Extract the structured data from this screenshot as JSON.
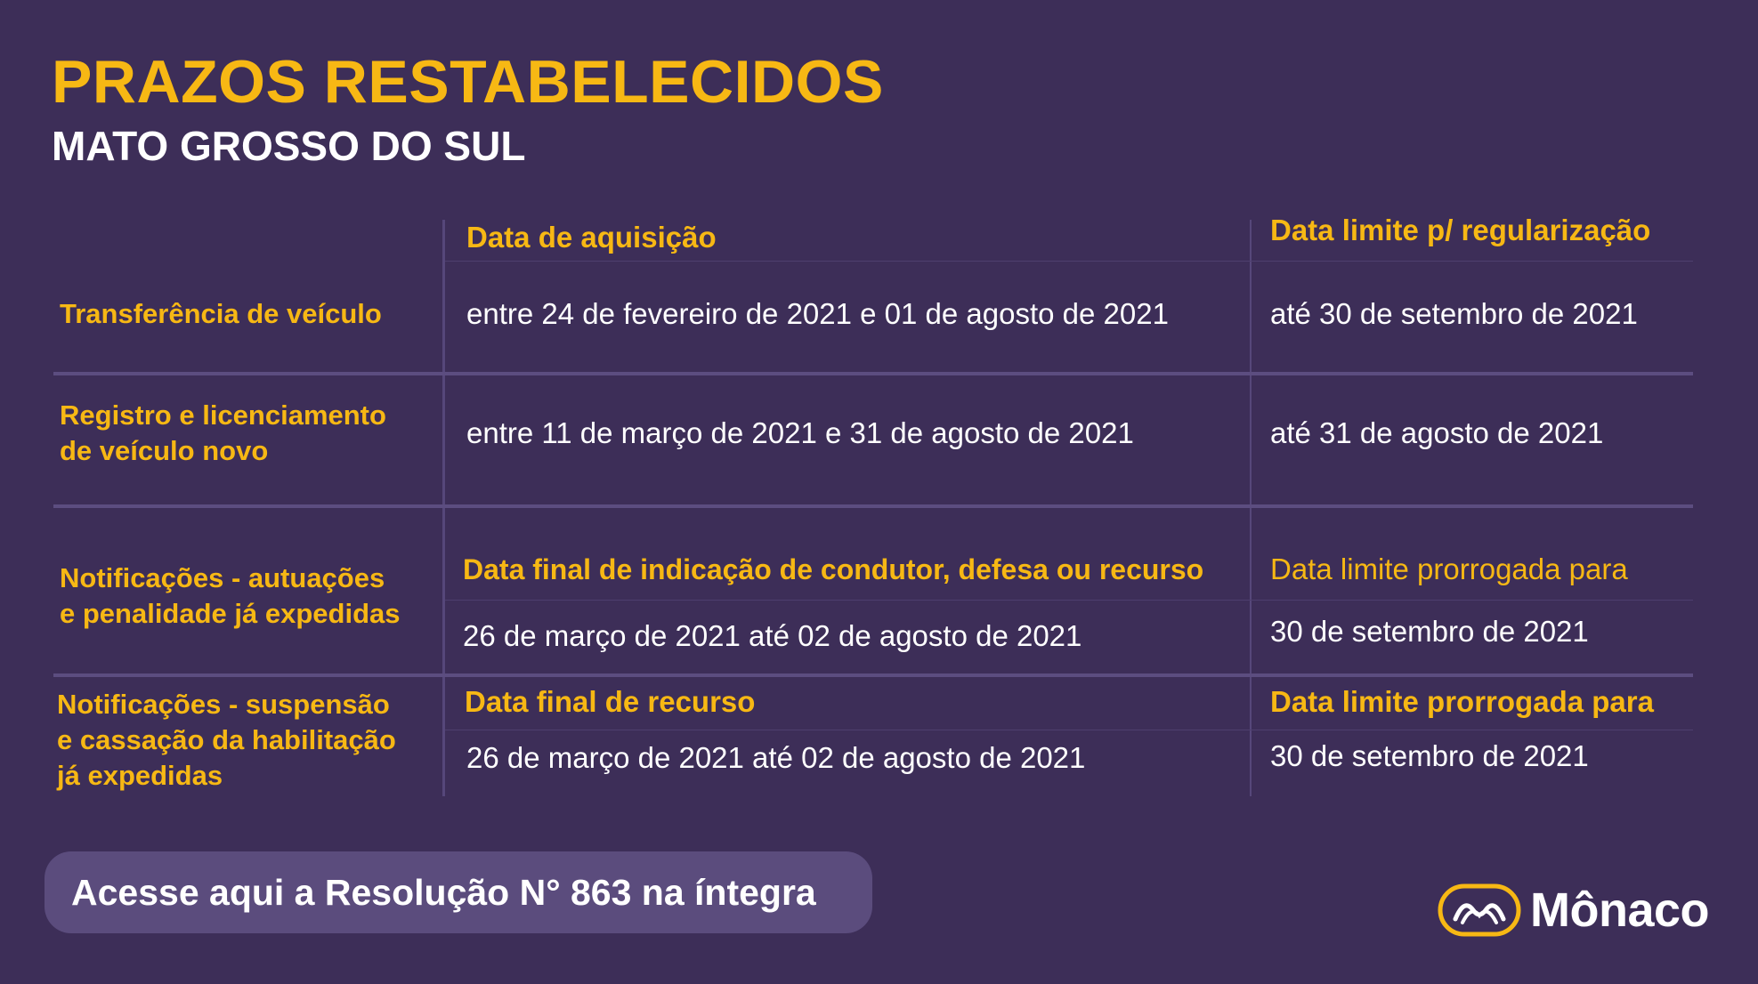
{
  "header": {
    "title": "PRAZOS RESTABELECIDOS",
    "subtitle": "MATO GROSSO DO SUL"
  },
  "table": {
    "header": {
      "acquisition": "Data de aquisição",
      "deadline": "Data limite p/ regularização"
    },
    "rows": [
      {
        "label": "Transferência de veículo",
        "date": "entre 24 de fevereiro de 2021 e 01 de agosto de 2021",
        "limit": "até 30 de setembro de 2021"
      },
      {
        "label_line1": "Registro e licenciamento",
        "label_line2": "de veículo novo",
        "date": "entre 11 de março de 2021 e 31 de agosto de 2021",
        "limit": "até 31 de agosto de 2021"
      },
      {
        "label_line1": "Notificações - autuações",
        "label_line2": "e penalidade já expedidas",
        "sub_header_date": "Data final de indicação de condutor, defesa ou recurso",
        "sub_header_limit": "Data limite prorrogada para",
        "date": "26 de março de 2021 até 02 de agosto de 2021",
        "limit": "30 de setembro de 2021"
      },
      {
        "label_line1": "Notificações - suspensão",
        "label_line2": "e cassação da habilitação",
        "label_line3": "já expedidas",
        "sub_header_date": "Data final de recurso",
        "sub_header_limit": "Data limite prorrogada para",
        "date": "26 de março de 2021 até 02 de agosto de 2021",
        "limit": "30 de setembro de 2021"
      }
    ]
  },
  "cta": {
    "label": "Acesse aqui a Resolução N° 863 na íntegra"
  },
  "logo": {
    "name": "Mônaco",
    "icon": "monaco-logo-icon",
    "accent": "#f7b814"
  },
  "colors": {
    "background": "#3d2e58",
    "accent": "#f7b814",
    "button": "#5b4c7d"
  }
}
